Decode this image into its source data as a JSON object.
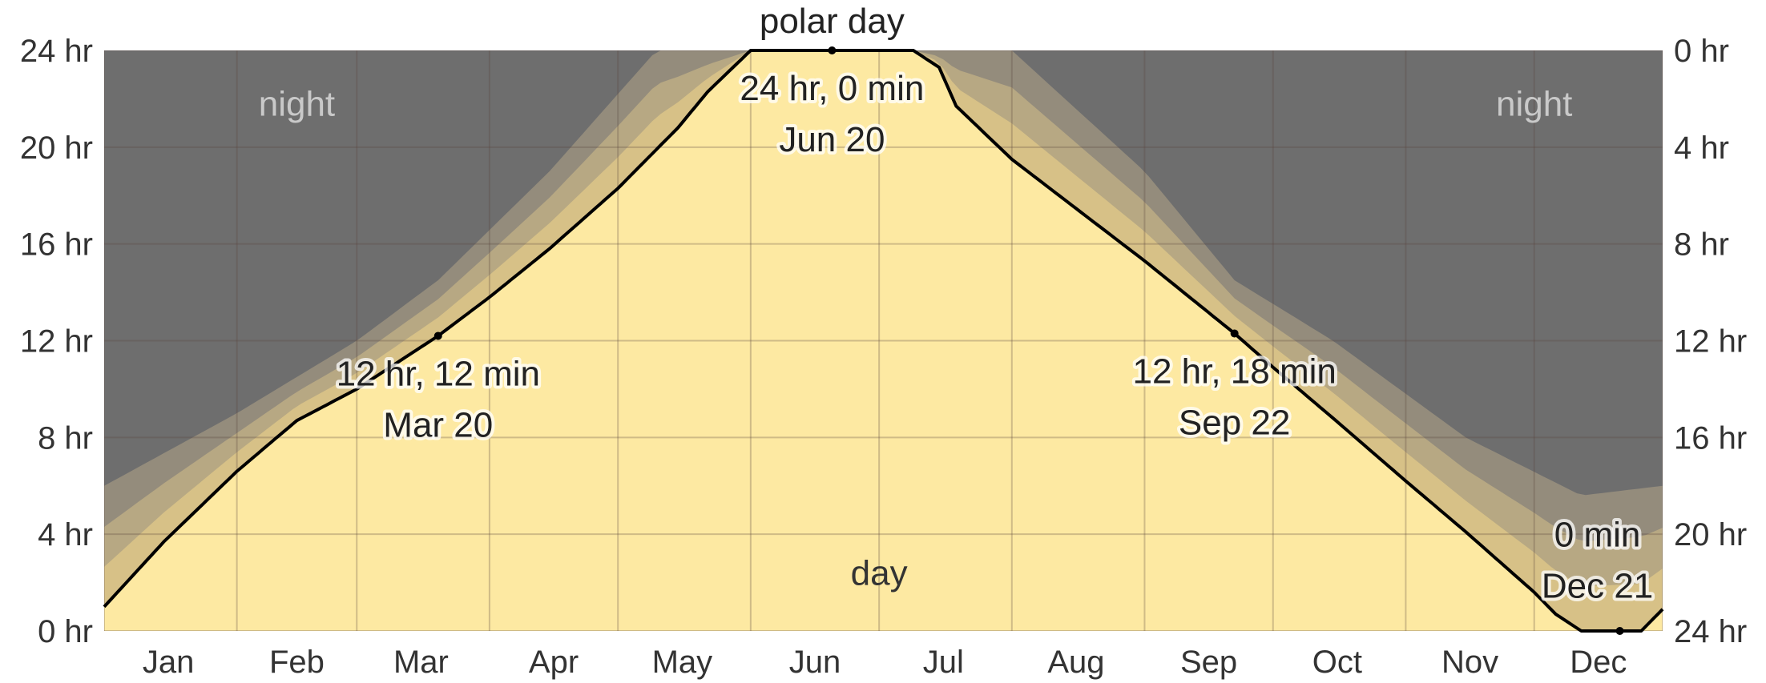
{
  "chart_data": {
    "type": "area",
    "x_axis_labels": [
      "Jan",
      "Feb",
      "Mar",
      "Apr",
      "May",
      "Jun",
      "Jul",
      "Aug",
      "Sep",
      "Oct",
      "Nov",
      "Dec"
    ],
    "y_left_ticks": [
      "0 hr",
      "4 hr",
      "8 hr",
      "12 hr",
      "16 hr",
      "20 hr",
      "24 hr"
    ],
    "y_right_ticks": [
      "24 hr",
      "20 hr",
      "16 hr",
      "12 hr",
      "8 hr",
      "4 hr",
      "0 hr"
    ],
    "ylim": [
      0,
      24
    ],
    "grid": true,
    "region_labels": {
      "night_left": "night",
      "night_right": "night",
      "day": "day"
    },
    "series": [
      {
        "x_day_of_year": [
          1,
          15,
          32,
          46,
          60,
          79,
          91,
          105,
          121,
          135,
          142,
          152,
          171,
          190,
          196,
          200,
          213,
          227,
          244,
          265,
          274,
          288,
          305,
          319,
          335,
          340,
          346,
          355,
          360,
          365
        ],
        "hours_of_daylight": [
          1.0,
          3.7,
          6.6,
          8.7,
          10.0,
          12.2,
          13.8,
          15.8,
          18.3,
          20.8,
          22.3,
          24.0,
          24.0,
          24.0,
          23.3,
          21.7,
          19.5,
          17.6,
          15.3,
          12.3,
          10.9,
          8.8,
          6.2,
          4.1,
          1.6,
          0.7,
          0.0,
          0.0,
          0.0,
          0.9
        ]
      }
    ],
    "twilight_hours_total": [
      [
        1,
        6.0
      ],
      [
        32,
        9.0
      ],
      [
        60,
        12.0
      ],
      [
        79,
        14.5
      ],
      [
        105,
        19.0
      ],
      [
        130,
        24.0
      ],
      [
        213,
        24.0
      ],
      [
        244,
        19.0
      ],
      [
        265,
        14.5
      ],
      [
        288,
        12.0
      ],
      [
        319,
        8.0
      ],
      [
        346,
        5.6
      ],
      [
        365,
        6.0
      ]
    ],
    "annotations": [
      {
        "lines": [
          "polar day"
        ],
        "day": 171,
        "hours": 24.0,
        "marker": true
      },
      {
        "lines": [
          "24 hr, 0 min",
          "Jun 20"
        ],
        "day": 171,
        "hours": 24.0,
        "marker": false
      },
      {
        "lines": [
          "12 hr, 12 min",
          "Mar 20"
        ],
        "day": 79,
        "hours": 12.2,
        "marker": true
      },
      {
        "lines": [
          "12 hr, 18 min",
          "Sep 22"
        ],
        "day": 265,
        "hours": 12.3,
        "marker": true
      },
      {
        "lines": [
          "0 min",
          "Dec 21"
        ],
        "day": 355,
        "hours": 0.0,
        "marker": true
      }
    ],
    "colors": {
      "day": "#fde9a2",
      "day_grid": "#e8b48a",
      "night": "#6e6e6e",
      "twilight_1": "#948c7c",
      "twilight_2": "#b7a883",
      "twilight_3": "#d7c187",
      "line": "#000000",
      "night_grid": "#5a5a5a"
    }
  }
}
